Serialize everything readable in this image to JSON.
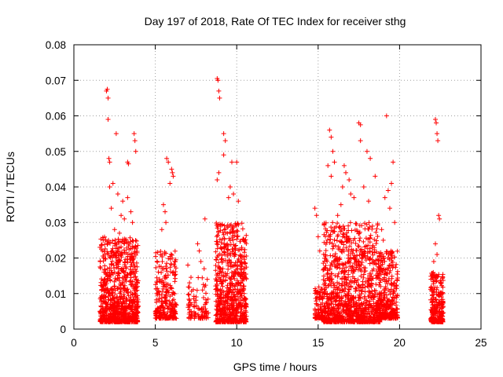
{
  "chart_data": {
    "type": "scatter",
    "title": "Day 197 of 2018, Rate Of TEC Index for receiver sthg",
    "xlabel": "GPS time / hours",
    "ylabel": "ROTI / TECUs",
    "xlim": [
      0,
      25
    ],
    "ylim": [
      0,
      0.08
    ],
    "xticks": [
      0,
      5,
      10,
      15,
      20,
      25
    ],
    "yticks": [
      0,
      0.01,
      0.02,
      0.03,
      0.04,
      0.05,
      0.06,
      0.07,
      0.08
    ],
    "xtick_labels": [
      "0",
      "5",
      "10",
      "15",
      "20",
      "25"
    ],
    "ytick_labels": [
      "0",
      "0.01",
      "0.02",
      "0.03",
      "0.04",
      "0.05",
      "0.06",
      "0.07",
      "0.08"
    ],
    "grid": true,
    "marker": "+",
    "marker_color": "#ff0000",
    "series": [
      {
        "name": "ROTI",
        "points": [
          [
            2.0,
            0.067
          ],
          [
            2.05,
            0.0675
          ],
          [
            2.1,
            0.065
          ],
          [
            2.1,
            0.059
          ],
          [
            2.15,
            0.048
          ],
          [
            2.2,
            0.047
          ],
          [
            2.6,
            0.055
          ],
          [
            3.3,
            0.047
          ],
          [
            3.35,
            0.0465
          ],
          [
            3.7,
            0.055
          ],
          [
            3.75,
            0.053
          ],
          [
            3.8,
            0.05
          ],
          [
            2.2,
            0.04
          ],
          [
            2.4,
            0.041
          ],
          [
            2.7,
            0.038
          ],
          [
            3.0,
            0.036
          ],
          [
            3.3,
            0.037
          ],
          [
            3.5,
            0.033
          ],
          [
            2.3,
            0.034
          ],
          [
            2.9,
            0.032
          ],
          [
            3.1,
            0.031
          ],
          [
            3.6,
            0.03
          ],
          [
            1.8,
            0.025
          ],
          [
            2.5,
            0.028
          ],
          [
            2.8,
            0.027
          ],
          [
            5.7,
            0.048
          ],
          [
            5.8,
            0.047
          ],
          [
            6.0,
            0.045
          ],
          [
            6.05,
            0.044
          ],
          [
            5.5,
            0.035
          ],
          [
            5.6,
            0.033
          ],
          [
            5.9,
            0.041
          ],
          [
            6.1,
            0.043
          ],
          [
            5.4,
            0.028
          ],
          [
            5.65,
            0.03
          ],
          [
            7.0,
            0.018
          ],
          [
            7.1,
            0.013
          ],
          [
            7.2,
            0.005
          ],
          [
            7.6,
            0.024
          ],
          [
            7.7,
            0.022
          ],
          [
            7.8,
            0.019
          ],
          [
            7.9,
            0.011
          ],
          [
            8.0,
            0.017
          ],
          [
            8.05,
            0.031
          ],
          [
            8.8,
            0.0705
          ],
          [
            8.85,
            0.07
          ],
          [
            8.9,
            0.067
          ],
          [
            8.95,
            0.065
          ],
          [
            9.2,
            0.055
          ],
          [
            9.3,
            0.053
          ],
          [
            8.9,
            0.044
          ],
          [
            8.8,
            0.042
          ],
          [
            9.5,
            0.037
          ],
          [
            9.6,
            0.04
          ],
          [
            9.8,
            0.038
          ],
          [
            10.1,
            0.036
          ],
          [
            9.7,
            0.047
          ],
          [
            10.0,
            0.047
          ],
          [
            9.2,
            0.049
          ],
          [
            14.8,
            0.034
          ],
          [
            14.9,
            0.032
          ],
          [
            15.0,
            0.026
          ],
          [
            15.1,
            0.022
          ],
          [
            15.7,
            0.056
          ],
          [
            15.8,
            0.054
          ],
          [
            15.9,
            0.05
          ],
          [
            16.0,
            0.047
          ],
          [
            15.6,
            0.046
          ],
          [
            15.8,
            0.043
          ],
          [
            16.6,
            0.046
          ],
          [
            16.7,
            0.044
          ],
          [
            16.9,
            0.042
          ],
          [
            17.0,
            0.038
          ],
          [
            16.5,
            0.04
          ],
          [
            17.2,
            0.037
          ],
          [
            17.5,
            0.058
          ],
          [
            17.6,
            0.0575
          ],
          [
            17.6,
            0.053
          ],
          [
            18.0,
            0.05
          ],
          [
            18.2,
            0.048
          ],
          [
            18.5,
            0.043
          ],
          [
            17.8,
            0.04
          ],
          [
            18.1,
            0.036
          ],
          [
            16.2,
            0.032
          ],
          [
            16.4,
            0.035
          ],
          [
            19.2,
            0.06
          ],
          [
            19.6,
            0.047
          ],
          [
            19.5,
            0.041
          ],
          [
            19.3,
            0.039
          ],
          [
            19.1,
            0.037
          ],
          [
            19.4,
            0.034
          ],
          [
            18.9,
            0.028
          ],
          [
            19.0,
            0.025
          ],
          [
            19.7,
            0.03
          ],
          [
            22.2,
            0.059
          ],
          [
            22.25,
            0.058
          ],
          [
            22.3,
            0.055
          ],
          [
            22.35,
            0.053
          ],
          [
            22.4,
            0.032
          ],
          [
            22.45,
            0.031
          ],
          [
            22.2,
            0.024
          ],
          [
            22.3,
            0.021
          ],
          [
            22.1,
            0.019
          ]
        ]
      }
    ],
    "clusters": [
      {
        "x": [
          1.6,
          3.95
        ],
        "y": [
          0.002,
          0.026
        ],
        "n": 900
      },
      {
        "x": [
          5.0,
          6.3
        ],
        "y": [
          0.003,
          0.022
        ],
        "n": 260
      },
      {
        "x": [
          7.0,
          8.3
        ],
        "y": [
          0.003,
          0.015
        ],
        "n": 90
      },
      {
        "x": [
          8.7,
          10.6
        ],
        "y": [
          0.002,
          0.03
        ],
        "n": 700
      },
      {
        "x": [
          14.8,
          15.3
        ],
        "y": [
          0.003,
          0.012
        ],
        "n": 80
      },
      {
        "x": [
          15.3,
          18.8
        ],
        "y": [
          0.002,
          0.03
        ],
        "n": 1100
      },
      {
        "x": [
          18.7,
          19.9
        ],
        "y": [
          0.003,
          0.022
        ],
        "n": 320
      },
      {
        "x": [
          21.9,
          22.7
        ],
        "y": [
          0.002,
          0.016
        ],
        "n": 260
      }
    ]
  }
}
